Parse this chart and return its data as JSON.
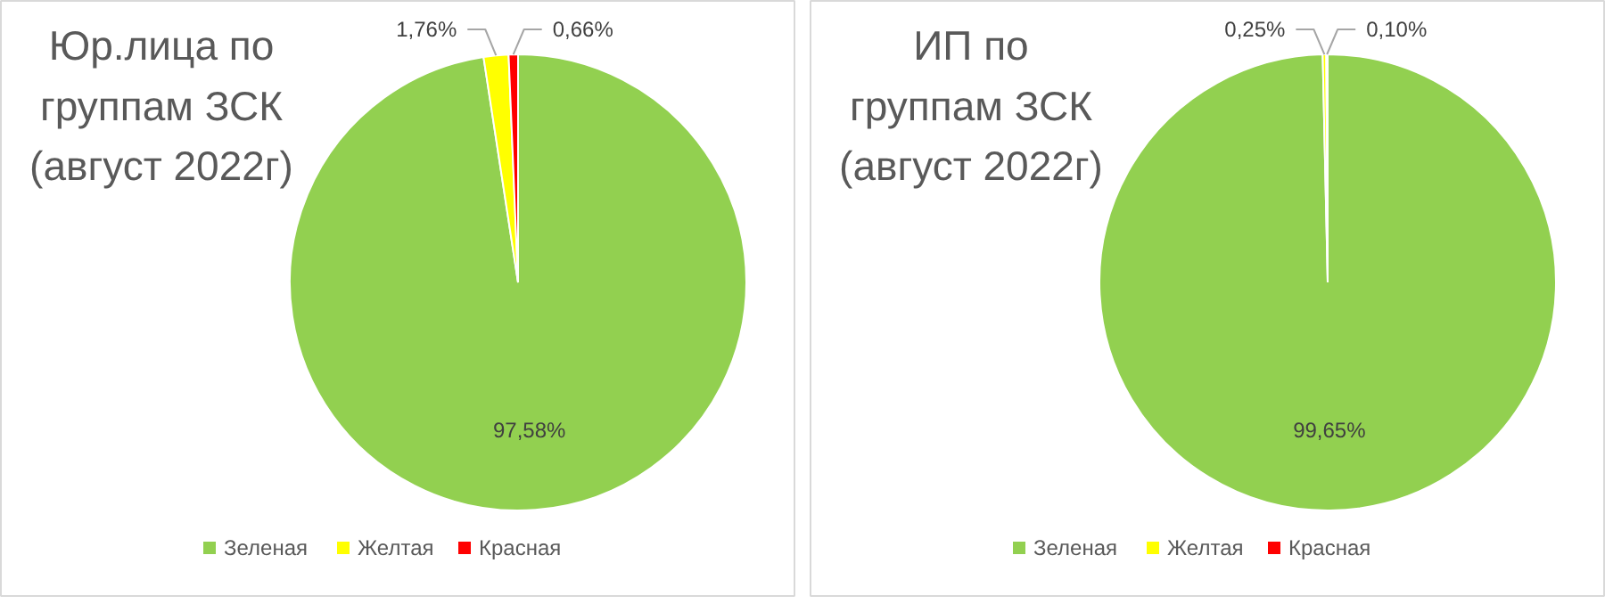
{
  "chart_data": [
    {
      "type": "pie",
      "title": "Юр.лица по\nгруппам ЗСК\n(август 2022г)",
      "categories": [
        "Зеленая",
        "Желтая",
        "Красная"
      ],
      "values": [
        97.58,
        1.76,
        0.66
      ],
      "colors": [
        "#92d050",
        "#ffff00",
        "#ff0000"
      ],
      "value_labels": [
        "97,58%",
        "1,76%",
        "0,66%"
      ],
      "legend": "bottom"
    },
    {
      "type": "pie",
      "title": "ИП по\nгруппам ЗСК\n(август 2022г)",
      "categories": [
        "Зеленая",
        "Желтая",
        "Красная"
      ],
      "values": [
        99.65,
        0.25,
        0.1
      ],
      "colors": [
        "#92d050",
        "#ffff00",
        "#ff0000"
      ],
      "value_labels": [
        "99,65%",
        "0,25%",
        "0,10%"
      ],
      "legend": "bottom"
    }
  ]
}
